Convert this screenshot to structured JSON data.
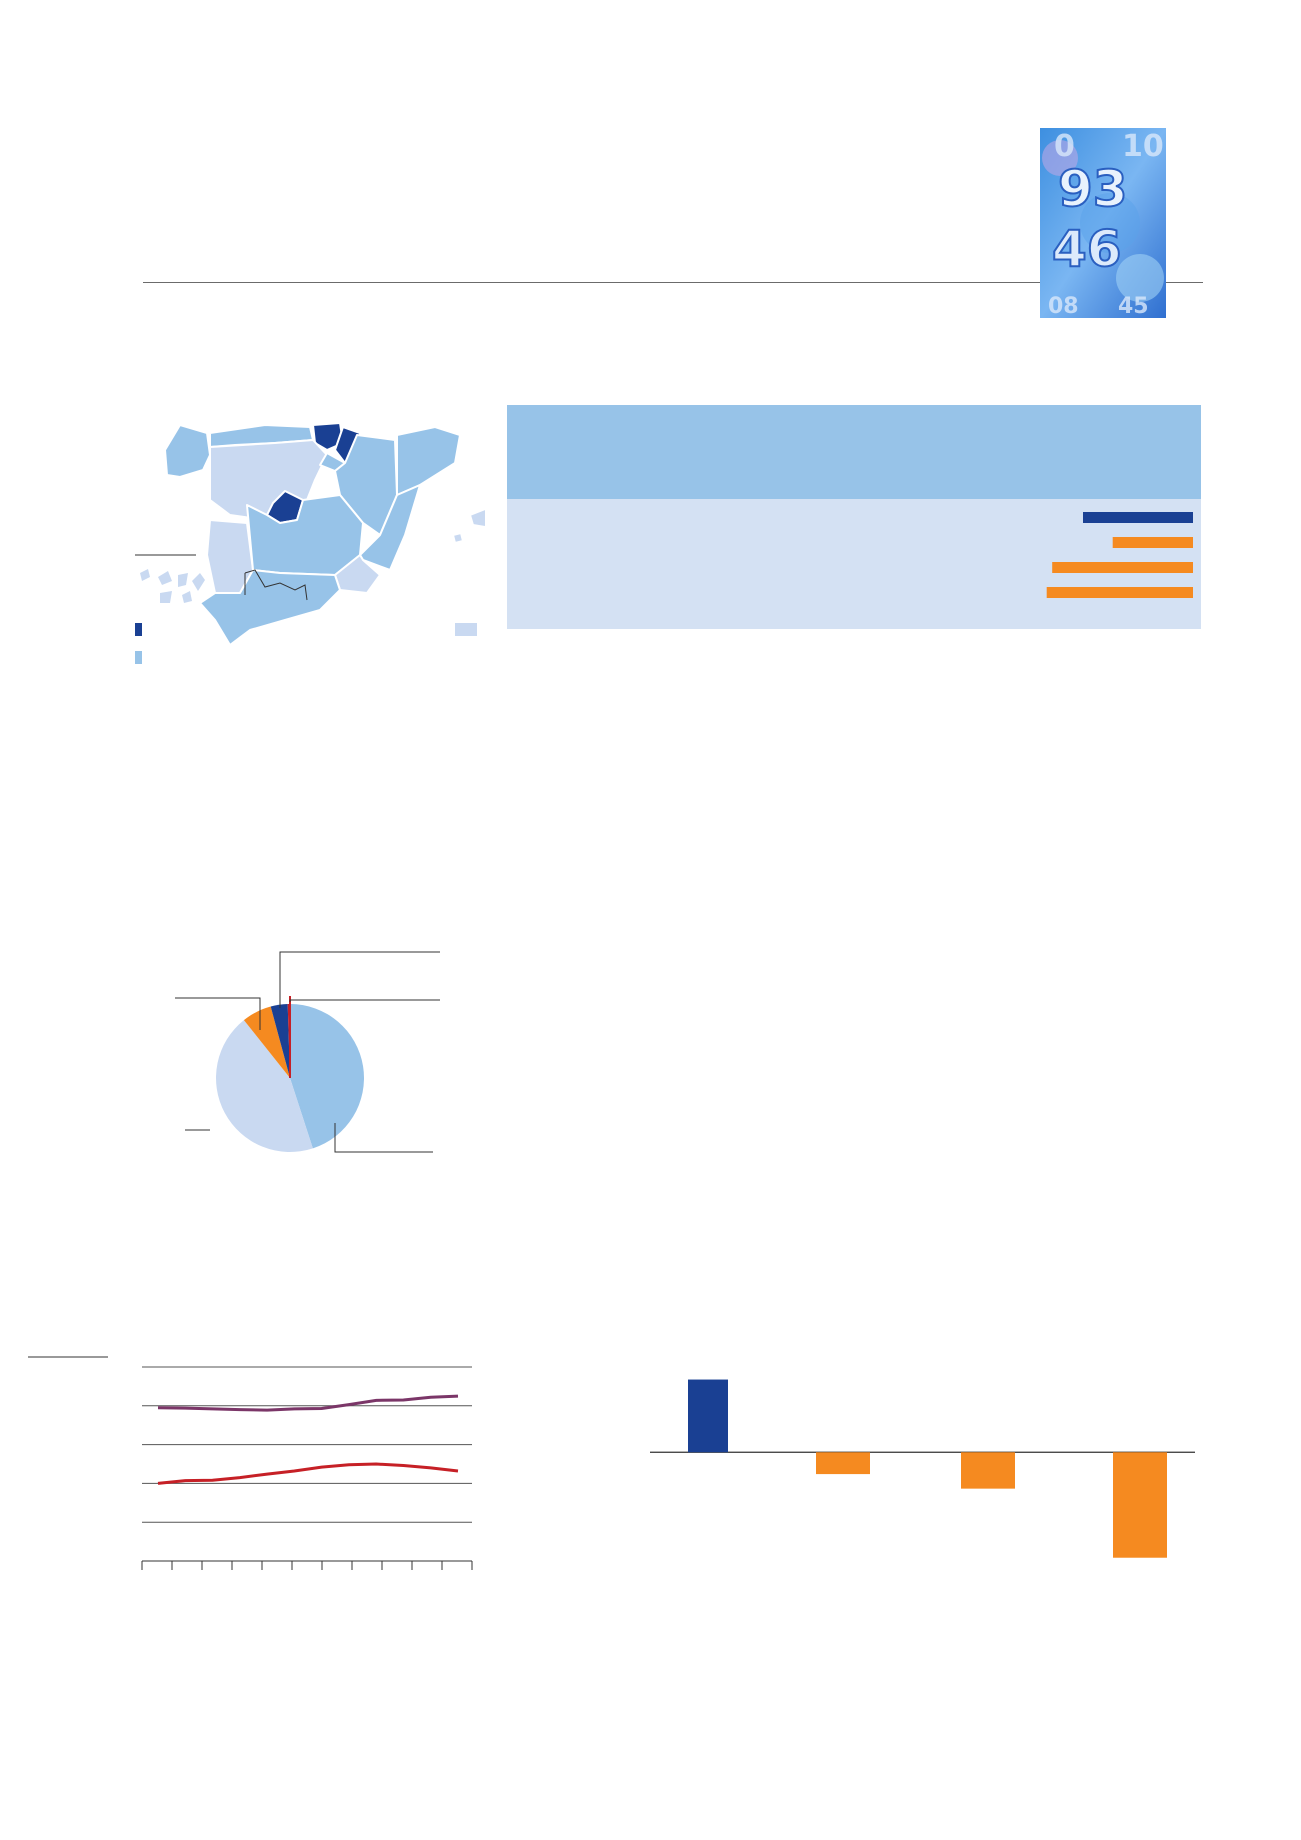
{
  "colors": {
    "dark_blue": "#1a4093",
    "mid_blue": "#97c3e8",
    "light_blue": "#c9d9f1",
    "orange": "#f58a20",
    "red": "#c62026",
    "purple": "#7b3668",
    "box_header": "#97c3e8",
    "box_body": "#d4e1f3"
  },
  "map": {
    "legend": [
      {
        "swatch": "dark",
        "color": "#1a4093"
      },
      {
        "swatch": "mid",
        "color": "#97c3e8"
      },
      {
        "swatch": "light",
        "color": "#c9d9f1"
      }
    ]
  },
  "stats_box": {
    "bars": [
      {
        "value": 1.0,
        "color": "#1a4093"
      },
      {
        "value": 0.73,
        "color": "#f58a20"
      },
      {
        "value": 1.28,
        "color": "#f58a20"
      },
      {
        "value": 1.33,
        "color": "#f58a20"
      }
    ]
  },
  "chart_data": [
    {
      "type": "pie",
      "slices": [
        {
          "value": 45,
          "color": "#97c3e8"
        },
        {
          "value": 44.3,
          "color": "#c9d9f1"
        },
        {
          "value": 6.5,
          "color": "#f58a20"
        },
        {
          "value": 3.7,
          "color": "#1a4093"
        },
        {
          "value": 0.5,
          "color": "#c62026"
        }
      ]
    },
    {
      "type": "line",
      "ylim": [
        0,
        5
      ],
      "yticks": [
        1,
        2,
        3,
        4,
        5
      ],
      "x_count": 12,
      "grid": true,
      "series": [
        {
          "color": "#7b3668",
          "values": [
            3.95,
            3.94,
            3.92,
            3.9,
            3.89,
            3.92,
            3.93,
            4.03,
            4.14,
            4.15,
            4.22,
            4.25
          ]
        },
        {
          "color": "#c62026",
          "values": [
            2.0,
            2.07,
            2.08,
            2.15,
            2.24,
            2.32,
            2.42,
            2.48,
            2.5,
            2.46,
            2.4,
            2.32
          ]
        }
      ]
    },
    {
      "type": "bar",
      "values": [
        1.0,
        -0.3,
        -0.5,
        -1.45
      ],
      "colors": [
        "#1a4093",
        "#f58a20",
        "#f58a20",
        "#f58a20"
      ],
      "ylim": [
        -1.55,
        1.2
      ]
    }
  ]
}
